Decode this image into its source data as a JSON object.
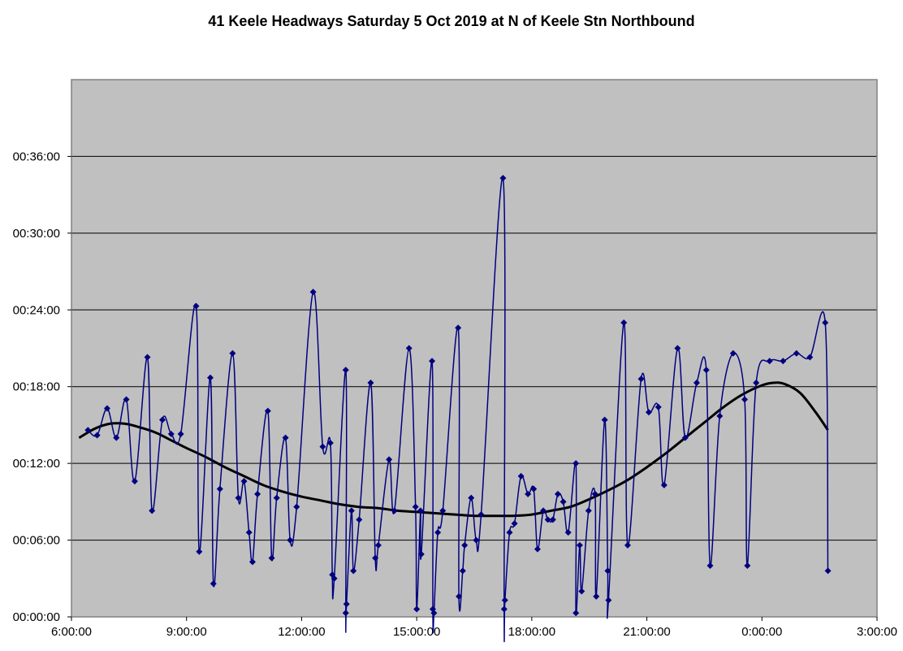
{
  "chart_data": {
    "type": "line",
    "title": "41 Keele Headways Saturday 5 Oct 2019 at N of Keele Stn Northbound",
    "xlabel": "",
    "ylabel": "",
    "x_unit": "hours",
    "y_unit": "minutes",
    "xlim": [
      6,
      27
    ],
    "ylim": [
      0,
      42
    ],
    "x_ticks": [
      {
        "v": 6,
        "label": "6:00:00"
      },
      {
        "v": 9,
        "label": "9:00:00"
      },
      {
        "v": 12,
        "label": "12:00:00"
      },
      {
        "v": 15,
        "label": "15:00:00"
      },
      {
        "v": 18,
        "label": "18:00:00"
      },
      {
        "v": 21,
        "label": "21:00:00"
      },
      {
        "v": 24,
        "label": "0:00:00"
      },
      {
        "v": 27,
        "label": "3:00:00"
      }
    ],
    "y_ticks": [
      {
        "v": 0,
        "label": "00:00:00"
      },
      {
        "v": 6,
        "label": "00:06:00"
      },
      {
        "v": 12,
        "label": "00:12:00"
      },
      {
        "v": 18,
        "label": "00:18:00"
      },
      {
        "v": 24,
        "label": "00:24:00"
      },
      {
        "v": 30,
        "label": "00:30:00"
      },
      {
        "v": 36,
        "label": "00:36:00"
      }
    ],
    "grid": {
      "horizontal": true,
      "vertical": false
    },
    "legend": "none",
    "colors": {
      "plot_bg": "#c0c0c0",
      "series": "#000080",
      "trend": "#000000",
      "grid": "#000000"
    },
    "series": [
      {
        "points": [
          [
            6.43,
            14.6
          ],
          [
            6.67,
            14.2
          ],
          [
            6.93,
            16.3
          ],
          [
            7.17,
            14.0
          ],
          [
            7.43,
            17.0
          ],
          [
            7.65,
            10.6
          ],
          [
            7.98,
            20.3
          ],
          [
            8.1,
            8.3
          ],
          [
            8.37,
            15.4
          ],
          [
            8.6,
            14.3
          ],
          [
            8.85,
            14.3
          ],
          [
            9.25,
            24.3
          ],
          [
            9.33,
            5.1
          ],
          [
            9.62,
            18.7
          ],
          [
            9.7,
            2.6
          ],
          [
            9.87,
            10.0
          ],
          [
            10.2,
            20.6
          ],
          [
            10.35,
            9.3
          ],
          [
            10.5,
            10.6
          ],
          [
            10.63,
            6.6
          ],
          [
            10.72,
            4.3
          ],
          [
            10.85,
            9.6
          ],
          [
            11.12,
            16.1
          ],
          [
            11.22,
            4.6
          ],
          [
            11.35,
            9.3
          ],
          [
            11.58,
            14.0
          ],
          [
            11.7,
            6.0
          ],
          [
            11.87,
            8.6
          ],
          [
            12.3,
            25.4
          ],
          [
            12.55,
            13.3
          ],
          [
            12.75,
            13.6
          ],
          [
            12.8,
            3.3
          ],
          [
            12.85,
            3.0
          ],
          [
            13.15,
            19.3
          ],
          [
            13.15,
            0.3
          ],
          [
            13.17,
            1.0
          ],
          [
            13.3,
            8.3
          ],
          [
            13.35,
            3.6
          ],
          [
            13.5,
            7.6
          ],
          [
            13.8,
            18.3
          ],
          [
            13.92,
            4.6
          ],
          [
            14.0,
            5.6
          ],
          [
            14.28,
            12.3
          ],
          [
            14.42,
            8.3
          ],
          [
            14.8,
            21.0
          ],
          [
            14.97,
            8.6
          ],
          [
            15.0,
            0.6
          ],
          [
            15.1,
            8.3
          ],
          [
            15.12,
            4.9
          ],
          [
            15.4,
            20.0
          ],
          [
            15.42,
            0.6
          ],
          [
            15.45,
            0.3
          ],
          [
            15.55,
            6.6
          ],
          [
            15.68,
            8.3
          ],
          [
            16.08,
            22.6
          ],
          [
            16.1,
            1.6
          ],
          [
            16.2,
            3.6
          ],
          [
            16.25,
            5.6
          ],
          [
            16.42,
            9.3
          ],
          [
            16.55,
            6.0
          ],
          [
            16.68,
            8.0
          ],
          [
            17.25,
            34.3
          ],
          [
            17.28,
            0.6
          ],
          [
            17.3,
            1.3
          ],
          [
            17.42,
            6.6
          ],
          [
            17.55,
            7.3
          ],
          [
            17.72,
            11.0
          ],
          [
            17.9,
            9.6
          ],
          [
            18.05,
            10.0
          ],
          [
            18.15,
            5.3
          ],
          [
            18.3,
            8.3
          ],
          [
            18.42,
            7.6
          ],
          [
            18.55,
            7.6
          ],
          [
            18.68,
            9.6
          ],
          [
            18.82,
            9.0
          ],
          [
            18.95,
            6.6
          ],
          [
            19.15,
            12.0
          ],
          [
            19.15,
            0.3
          ],
          [
            19.25,
            5.6
          ],
          [
            19.3,
            2.0
          ],
          [
            19.48,
            8.3
          ],
          [
            19.65,
            9.6
          ],
          [
            19.68,
            1.6
          ],
          [
            19.9,
            15.4
          ],
          [
            19.98,
            3.6
          ],
          [
            20.0,
            1.3
          ],
          [
            20.4,
            23.0
          ],
          [
            20.5,
            5.6
          ],
          [
            20.85,
            18.6
          ],
          [
            21.05,
            16.0
          ],
          [
            21.3,
            16.4
          ],
          [
            21.45,
            10.3
          ],
          [
            21.8,
            21.0
          ],
          [
            22.0,
            14.0
          ],
          [
            22.3,
            18.3
          ],
          [
            22.55,
            19.3
          ],
          [
            22.65,
            4.0
          ],
          [
            22.9,
            15.7
          ],
          [
            23.25,
            20.6
          ],
          [
            23.55,
            17.0
          ],
          [
            23.62,
            4.0
          ],
          [
            23.85,
            18.3
          ],
          [
            24.2,
            20.0
          ],
          [
            24.55,
            20.0
          ],
          [
            24.9,
            20.6
          ],
          [
            25.25,
            20.3
          ],
          [
            25.65,
            23.0
          ],
          [
            25.72,
            3.6
          ]
        ]
      },
      {
        "points": [
          [
            6.2,
            14.0
          ],
          [
            6.6,
            14.7
          ],
          [
            7.0,
            15.1
          ],
          [
            7.4,
            15.1
          ],
          [
            7.8,
            14.8
          ],
          [
            8.2,
            14.4
          ],
          [
            8.6,
            13.8
          ],
          [
            9.0,
            13.2
          ],
          [
            9.5,
            12.5
          ],
          [
            10.0,
            11.7
          ],
          [
            10.5,
            11.0
          ],
          [
            11.0,
            10.3
          ],
          [
            11.5,
            9.8
          ],
          [
            12.0,
            9.4
          ],
          [
            12.5,
            9.1
          ],
          [
            13.0,
            8.8
          ],
          [
            13.5,
            8.6
          ],
          [
            14.0,
            8.5
          ],
          [
            14.5,
            8.3
          ],
          [
            15.0,
            8.2
          ],
          [
            15.5,
            8.1
          ],
          [
            16.0,
            8.0
          ],
          [
            16.5,
            7.9
          ],
          [
            17.0,
            7.9
          ],
          [
            17.5,
            7.9
          ],
          [
            18.0,
            8.0
          ],
          [
            18.5,
            8.3
          ],
          [
            19.0,
            8.6
          ],
          [
            19.5,
            9.2
          ],
          [
            20.0,
            9.9
          ],
          [
            20.5,
            10.7
          ],
          [
            21.0,
            11.7
          ],
          [
            21.5,
            12.8
          ],
          [
            22.0,
            14.0
          ],
          [
            22.5,
            15.2
          ],
          [
            23.0,
            16.4
          ],
          [
            23.5,
            17.4
          ],
          [
            24.0,
            18.1
          ],
          [
            24.3,
            18.3
          ],
          [
            24.6,
            18.2
          ],
          [
            25.0,
            17.5
          ],
          [
            25.4,
            16.0
          ],
          [
            25.72,
            14.6
          ]
        ]
      }
    ]
  }
}
